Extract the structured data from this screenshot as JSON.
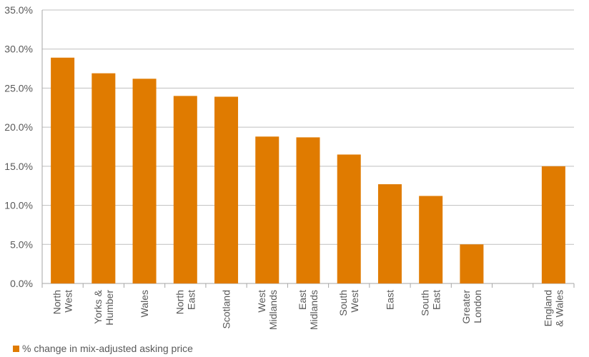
{
  "chart_data": {
    "type": "bar",
    "categories": [
      [
        "North",
        "West"
      ],
      [
        "Yorks &",
        "Humber"
      ],
      [
        "Wales"
      ],
      [
        "North",
        "East"
      ],
      [
        "Scotland"
      ],
      [
        "West",
        "Midlands"
      ],
      [
        "East",
        "Midlands"
      ],
      [
        "South",
        "West"
      ],
      [
        "East"
      ],
      [
        "South",
        "East"
      ],
      [
        "Greater",
        "London"
      ],
      [],
      [
        "England",
        "& Wales"
      ]
    ],
    "series": [
      {
        "name": "% change in mix-adjusted asking price",
        "values": [
          28.9,
          26.9,
          26.2,
          24.0,
          23.9,
          18.8,
          18.7,
          16.5,
          12.7,
          11.2,
          5.0,
          null,
          15.0
        ]
      }
    ],
    "ylim": [
      0,
      35
    ],
    "yticks": [
      "0.0%",
      "5.0%",
      "10.0%",
      "15.0%",
      "20.0%",
      "25.0%",
      "30.0%",
      "35.0%"
    ],
    "ytick_values": [
      0,
      5,
      10,
      15,
      20,
      25,
      30,
      35
    ],
    "grid": true,
    "legend_position": "bottom-left",
    "bar_color": "#e07b00",
    "grid_color": "#bfbfbf",
    "axis_color": "#a6a6a6"
  }
}
